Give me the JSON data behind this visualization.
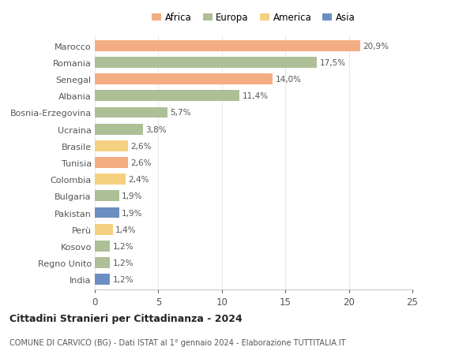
{
  "countries": [
    "Marocco",
    "Romania",
    "Senegal",
    "Albania",
    "Bosnia-Erzegovina",
    "Ucraina",
    "Brasile",
    "Tunisia",
    "Colombia",
    "Bulgaria",
    "Pakistan",
    "Perù",
    "Kosovo",
    "Regno Unito",
    "India"
  ],
  "values": [
    20.9,
    17.5,
    14.0,
    11.4,
    5.7,
    3.8,
    2.6,
    2.6,
    2.4,
    1.9,
    1.9,
    1.4,
    1.2,
    1.2,
    1.2
  ],
  "labels": [
    "20,9%",
    "17,5%",
    "14,0%",
    "11,4%",
    "5,7%",
    "3,8%",
    "2,6%",
    "2,6%",
    "2,4%",
    "1,9%",
    "1,9%",
    "1,4%",
    "1,2%",
    "1,2%",
    "1,2%"
  ],
  "continents": [
    "Africa",
    "Europa",
    "Africa",
    "Europa",
    "Europa",
    "Europa",
    "America",
    "Africa",
    "America",
    "Europa",
    "Asia",
    "America",
    "Europa",
    "Europa",
    "Asia"
  ],
  "colors": {
    "Africa": "#F4AD82",
    "Europa": "#ADBF96",
    "America": "#F5D080",
    "Asia": "#6B8FC0"
  },
  "title": "Cittadini Stranieri per Cittadinanza - 2024",
  "subtitle": "COMUNE DI CARVICO (BG) - Dati ISTAT al 1° gennaio 2024 - Elaborazione TUTTITALIA.IT",
  "xlim": [
    0,
    25
  ],
  "xticks": [
    0,
    5,
    10,
    15,
    20,
    25
  ],
  "background_color": "#ffffff",
  "bar_height": 0.65,
  "grid_color": "#e8e8e8"
}
